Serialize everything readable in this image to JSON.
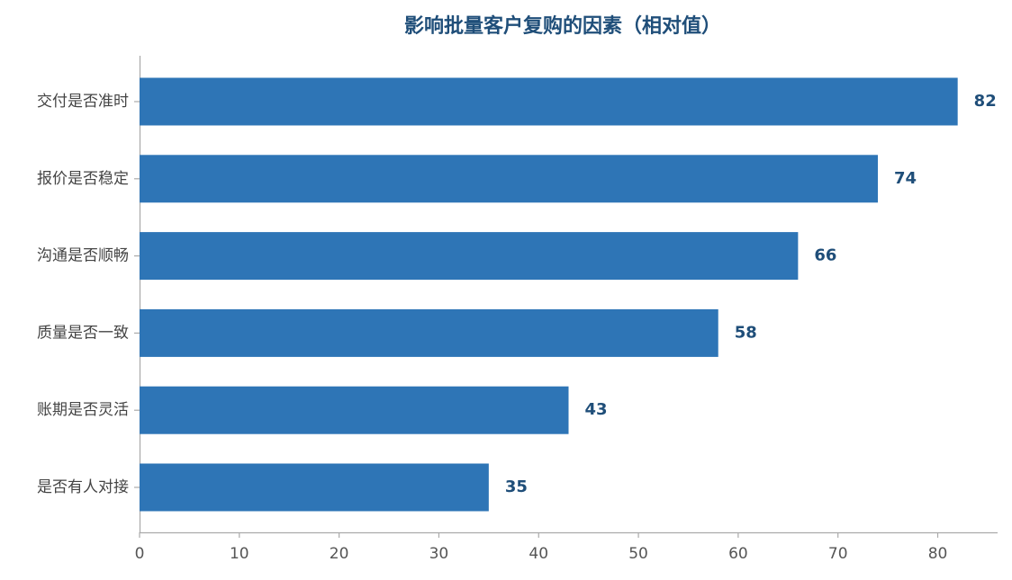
{
  "chart_data": {
    "type": "barh",
    "title": "影响批量客户复购的因素（相对值）",
    "categories": [
      "交付是否准时",
      "报价是否稳定",
      "沟通是否顺畅",
      "质量是否一致",
      "账期是否灵活",
      "是否有人对接"
    ],
    "values": [
      82,
      74,
      66,
      58,
      43,
      35
    ],
    "color": "#2e75b6",
    "label_color": "#1f4e79",
    "xlim": [
      0,
      86
    ],
    "xticks": [
      0,
      10,
      20,
      30,
      40,
      50,
      60,
      70,
      80
    ],
    "grid": false
  }
}
